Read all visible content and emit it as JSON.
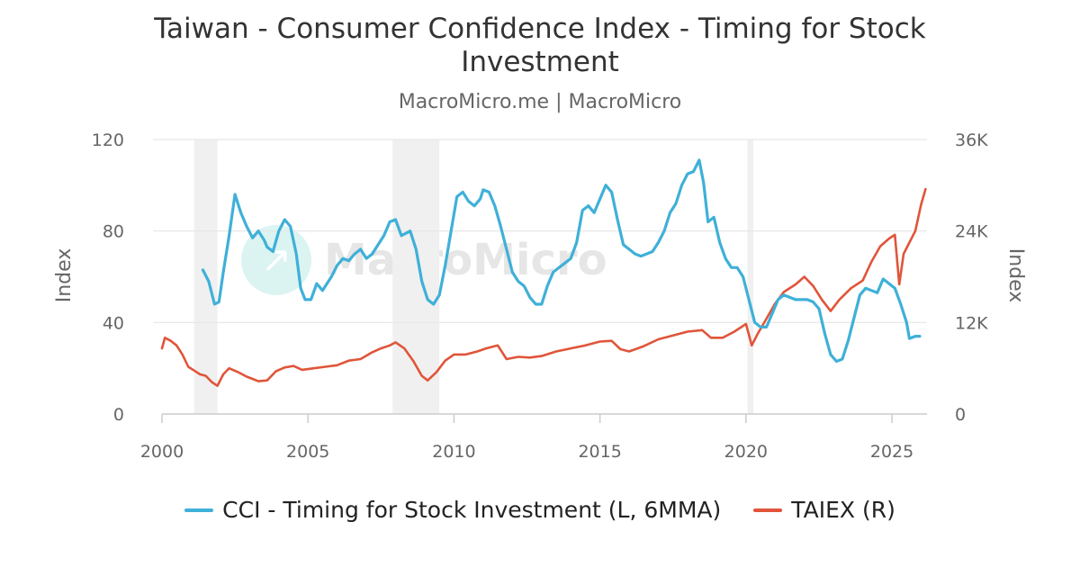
{
  "header": {
    "title": "Taiwan - Consumer Confidence Index - Timing for Stock Investment",
    "subtitle": "MacroMicro.me | MacroMicro"
  },
  "watermark": {
    "text": "MacroMicro"
  },
  "legend": {
    "cci": "CCI - Timing for Stock Investment (L, 6MMA)",
    "taiex": "TAIEX (R)"
  },
  "colors": {
    "cci": "#3fb0d8",
    "taiex": "#e0553a",
    "recession": "#f0f0f0",
    "grid": "#e6e6e6"
  },
  "chart_data": {
    "type": "line",
    "title": "Taiwan - Consumer Confidence Index - Timing for Stock Investment",
    "subtitle": "MacroMicro.me | MacroMicro",
    "x_range": [
      2000,
      2026.2
    ],
    "x_ticks": [
      2000,
      2005,
      2010,
      2015,
      2020,
      2025
    ],
    "x_tick_labels": [
      "2000",
      "2005",
      "2010",
      "2015",
      "2020",
      "2025"
    ],
    "y_left": {
      "label": "Index",
      "range": [
        0,
        120
      ],
      "ticks": [
        0,
        40,
        80,
        120
      ],
      "tick_labels": [
        "0",
        "40",
        "80",
        "120"
      ]
    },
    "y_right": {
      "label": "Index",
      "range": [
        0,
        36000
      ],
      "ticks": [
        0,
        12000,
        24000,
        36000
      ],
      "tick_labels": [
        "0",
        "12K",
        "24K",
        "36K"
      ]
    },
    "grid": true,
    "legend_position": "bottom",
    "shaded_periods": [
      [
        2001.1,
        2001.9
      ],
      [
        2007.9,
        2009.5
      ],
      [
        2020.05,
        2020.25
      ]
    ],
    "series": [
      {
        "name": "CCI - Timing for Stock Investment (L, 6MMA)",
        "axis": "left",
        "x": [
          2001.4,
          2001.6,
          2001.8,
          2001.95,
          2002.1,
          2002.3,
          2002.5,
          2002.7,
          2002.9,
          2003.1,
          2003.3,
          2003.5,
          2003.6,
          2003.8,
          2004.0,
          2004.2,
          2004.4,
          2004.6,
          2004.75,
          2004.9,
          2005.1,
          2005.3,
          2005.5,
          2005.8,
          2006.0,
          2006.2,
          2006.4,
          2006.6,
          2006.8,
          2007.0,
          2007.2,
          2007.4,
          2007.6,
          2007.8,
          2008.0,
          2008.2,
          2008.5,
          2008.7,
          2008.9,
          2009.1,
          2009.3,
          2009.5,
          2009.7,
          2009.9,
          2010.1,
          2010.3,
          2010.5,
          2010.7,
          2010.9,
          2011.0,
          2011.2,
          2011.4,
          2011.6,
          2011.8,
          2012.0,
          2012.2,
          2012.4,
          2012.6,
          2012.8,
          2013.0,
          2013.2,
          2013.4,
          2013.6,
          2013.8,
          2014.0,
          2014.2,
          2014.4,
          2014.6,
          2014.8,
          2015.0,
          2015.2,
          2015.4,
          2015.6,
          2015.8,
          2016.0,
          2016.2,
          2016.4,
          2016.6,
          2016.8,
          2017.0,
          2017.2,
          2017.4,
          2017.6,
          2017.8,
          2018.0,
          2018.2,
          2018.4,
          2018.55,
          2018.7,
          2018.9,
          2019.1,
          2019.3,
          2019.5,
          2019.7,
          2019.9,
          2020.1,
          2020.3,
          2020.5,
          2020.7,
          2020.9,
          2021.1,
          2021.3,
          2021.5,
          2021.7,
          2021.9,
          2022.1,
          2022.3,
          2022.5,
          2022.7,
          2022.9,
          2023.1,
          2023.3,
          2023.5,
          2023.7,
          2023.9,
          2024.1,
          2024.3,
          2024.5,
          2024.7,
          2024.9,
          2025.1,
          2025.3,
          2025.5,
          2025.6,
          2025.8,
          2025.95
        ],
        "y": [
          63,
          58,
          48,
          49,
          62,
          78,
          96,
          88,
          82,
          77,
          80,
          76,
          73,
          71,
          80,
          85,
          82,
          70,
          55,
          50,
          50,
          57,
          54,
          60,
          65,
          68,
          67,
          70,
          72,
          68,
          70,
          74,
          78,
          84,
          85,
          78,
          80,
          72,
          58,
          50,
          48,
          52,
          65,
          80,
          95,
          97,
          93,
          91,
          94,
          98,
          97,
          91,
          82,
          72,
          62,
          58,
          56,
          51,
          48,
          48,
          56,
          62,
          64,
          66,
          68,
          75,
          89,
          91,
          88,
          94,
          100,
          97,
          85,
          74,
          72,
          70,
          69,
          70,
          71,
          75,
          80,
          88,
          92,
          100,
          105,
          106,
          111,
          101,
          84,
          86,
          75,
          68,
          64,
          64,
          60,
          50,
          40,
          38,
          38,
          44,
          50,
          52,
          51,
          50,
          50,
          50,
          49,
          46,
          35,
          26,
          23,
          24,
          32,
          42,
          52,
          55,
          54,
          53,
          59,
          57,
          55,
          48,
          40,
          33,
          34,
          34
        ]
      },
      {
        "name": "TAIEX (R)",
        "axis": "right",
        "x": [
          2000.0,
          2000.1,
          2000.3,
          2000.5,
          2000.7,
          2000.9,
          2001.1,
          2001.3,
          2001.5,
          2001.7,
          2001.9,
          2002.1,
          2002.3,
          2002.6,
          2002.9,
          2003.1,
          2003.3,
          2003.6,
          2003.9,
          2004.2,
          2004.5,
          2004.8,
          2005.2,
          2005.6,
          2006.0,
          2006.4,
          2006.8,
          2007.2,
          2007.5,
          2007.8,
          2008.0,
          2008.3,
          2008.6,
          2008.9,
          2009.1,
          2009.4,
          2009.7,
          2010.0,
          2010.4,
          2010.8,
          2011.1,
          2011.5,
          2011.8,
          2012.2,
          2012.6,
          2013.0,
          2013.5,
          2014.0,
          2014.5,
          2015.0,
          2015.4,
          2015.7,
          2016.0,
          2016.5,
          2017.0,
          2017.5,
          2018.0,
          2018.5,
          2018.8,
          2019.2,
          2019.6,
          2020.0,
          2020.2,
          2020.4,
          2020.7,
          2021.0,
          2021.3,
          2021.7,
          2022.0,
          2022.3,
          2022.6,
          2022.9,
          2023.2,
          2023.6,
          2024.0,
          2024.3,
          2024.6,
          2024.9,
          2025.1,
          2025.25,
          2025.4,
          2025.6,
          2025.8,
          2026.0,
          2026.15
        ],
        "y": [
          8600,
          10000,
          9600,
          9000,
          7800,
          6200,
          5700,
          5200,
          5000,
          4200,
          3700,
          5200,
          6000,
          5500,
          4900,
          4600,
          4300,
          4400,
          5600,
          6100,
          6300,
          5800,
          6000,
          6200,
          6400,
          7000,
          7200,
          8100,
          8600,
          9000,
          9400,
          8600,
          7000,
          5000,
          4400,
          5500,
          7000,
          7800,
          7800,
          8200,
          8600,
          9000,
          7200,
          7500,
          7400,
          7600,
          8200,
          8600,
          9000,
          9500,
          9600,
          8500,
          8200,
          8900,
          9800,
          10300,
          10800,
          11000,
          10000,
          10000,
          10800,
          11800,
          9000,
          10500,
          12500,
          14500,
          16000,
          17000,
          18000,
          16800,
          15000,
          13500,
          15000,
          16500,
          17500,
          20000,
          22000,
          23000,
          23500,
          17000,
          21000,
          22500,
          24000,
          27500,
          29500
        ]
      }
    ]
  }
}
